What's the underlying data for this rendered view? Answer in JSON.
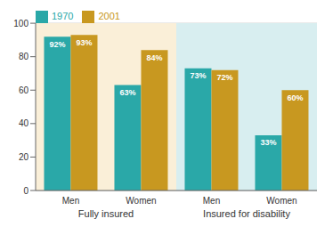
{
  "chart_data": {
    "type": "bar",
    "categories": [
      "Men",
      "Women",
      "Men",
      "Women"
    ],
    "series": [
      {
        "name": "1970",
        "color": "#2aa8a8",
        "values": [
          92,
          63,
          73,
          33
        ],
        "value_labels": [
          "92%",
          "63%",
          "73%",
          "33%"
        ]
      },
      {
        "name": "2001",
        "color": "#c89820",
        "values": [
          93,
          84,
          72,
          60
        ],
        "value_labels": [
          "93%",
          "84%",
          "72%",
          "60%"
        ]
      }
    ],
    "annotations": [
      {
        "text": "Fully insured",
        "color": "#faefd8"
      },
      {
        "text": "Insured for disability",
        "color": "#d8eef0"
      }
    ],
    "ylim": [
      0,
      100
    ],
    "yticks": [
      0,
      20,
      40,
      60,
      80,
      100
    ],
    "grid": true,
    "legend": "upper left",
    "data_labels": true
  }
}
